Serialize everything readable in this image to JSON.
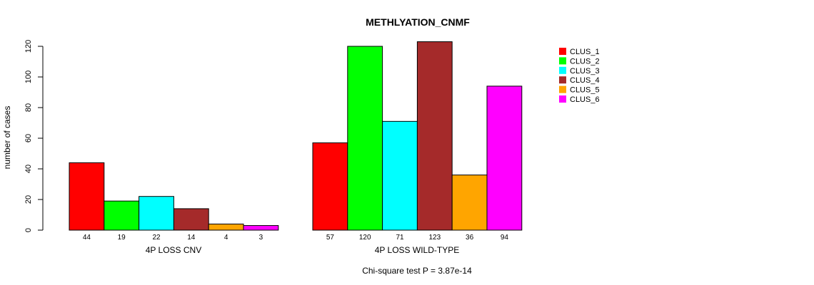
{
  "chart_data": {
    "type": "bar",
    "title": "METHLYATION_CNMF",
    "ylabel": "number of cases",
    "ylim": [
      0,
      120
    ],
    "yticks": [
      0,
      20,
      40,
      60,
      80,
      100,
      120
    ],
    "footer": "Chi-square test P = 3.87e-14",
    "legend_position": "top-right",
    "groups": [
      {
        "label": "4P LOSS CNV",
        "values": [
          44,
          19,
          22,
          14,
          4,
          3
        ]
      },
      {
        "label": "4P LOSS WILD-TYPE",
        "values": [
          57,
          120,
          71,
          123,
          36,
          94
        ]
      }
    ],
    "series": [
      {
        "name": "CLUS_1",
        "color": "#ff0000"
      },
      {
        "name": "CLUS_2",
        "color": "#00ff00"
      },
      {
        "name": "CLUS_3",
        "color": "#00ffff"
      },
      {
        "name": "CLUS_4",
        "color": "#a52a2a"
      },
      {
        "name": "CLUS_5",
        "color": "#ffa500"
      },
      {
        "name": "CLUS_6",
        "color": "#ff00ff"
      }
    ]
  }
}
